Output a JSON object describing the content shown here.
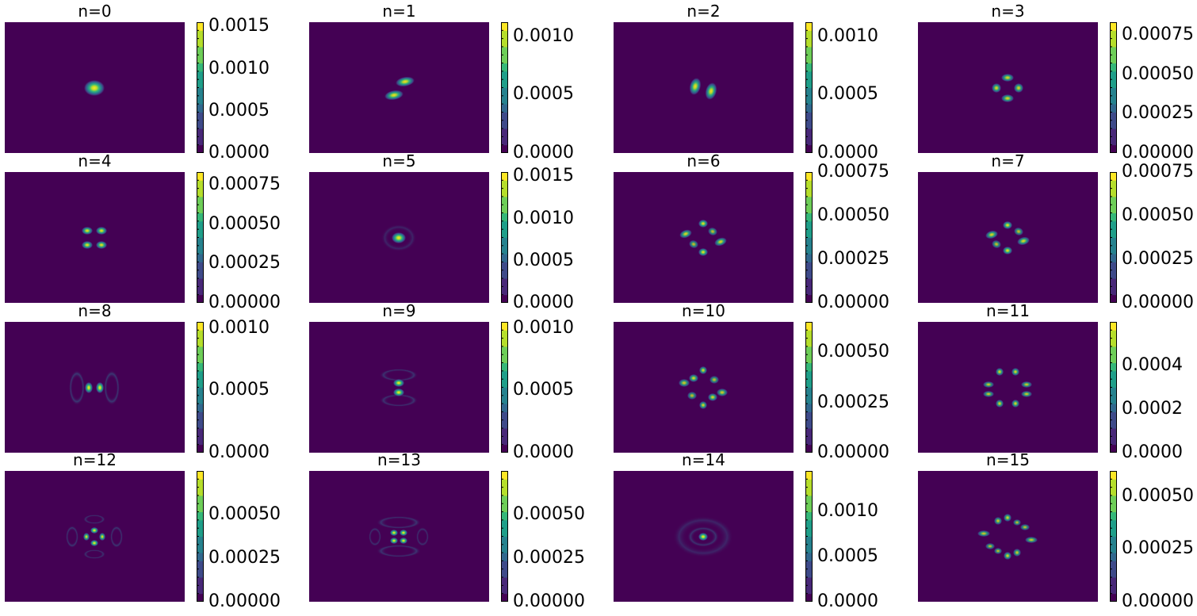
{
  "figure": {
    "colormap": "viridis",
    "panels": [
      {
        "title": "n=0",
        "ticks": [
          "0.0000",
          "0.0005",
          "0.0010",
          "0.0015"
        ],
        "tick_values": [
          0,
          0.0005,
          0.001,
          0.0015
        ],
        "vmax": 0.00155
      },
      {
        "title": "n=1",
        "ticks": [
          "0.0000",
          "0.0005",
          "0.0010"
        ],
        "tick_values": [
          0,
          0.0005,
          0.001
        ],
        "vmax": 0.00112
      },
      {
        "title": "n=2",
        "ticks": [
          "0.0000",
          "0.0005",
          "0.0010"
        ],
        "tick_values": [
          0,
          0.0005,
          0.001
        ],
        "vmax": 0.00112
      },
      {
        "title": "n=3",
        "ticks": [
          "0.00000",
          "0.00025",
          "0.00050",
          "0.00075"
        ],
        "tick_values": [
          0,
          0.00025,
          0.0005,
          0.00075
        ],
        "vmax": 0.00083
      },
      {
        "title": "n=4",
        "ticks": [
          "0.00000",
          "0.00025",
          "0.00050",
          "0.00075"
        ],
        "tick_values": [
          0,
          0.00025,
          0.0005,
          0.00075
        ],
        "vmax": 0.00083
      },
      {
        "title": "n=5",
        "ticks": [
          "0.0000",
          "0.0005",
          "0.0010",
          "0.0015"
        ],
        "tick_values": [
          0,
          0.0005,
          0.001,
          0.0015
        ],
        "vmax": 0.00155
      },
      {
        "title": "n=6",
        "ticks": [
          "0.00000",
          "0.00025",
          "0.00050",
          "0.00075"
        ],
        "tick_values": [
          0,
          0.00025,
          0.0005,
          0.00075
        ],
        "vmax": 0.00075
      },
      {
        "title": "n=7",
        "ticks": [
          "0.00000",
          "0.00025",
          "0.00050",
          "0.00075"
        ],
        "tick_values": [
          0,
          0.00025,
          0.0005,
          0.00075
        ],
        "vmax": 0.00075
      },
      {
        "title": "n=8",
        "ticks": [
          "0.0000",
          "0.0005",
          "0.0010"
        ],
        "tick_values": [
          0,
          0.0005,
          0.001
        ],
        "vmax": 0.00105
      },
      {
        "title": "n=9",
        "ticks": [
          "0.0000",
          "0.0005",
          "0.0010"
        ],
        "tick_values": [
          0,
          0.0005,
          0.001
        ],
        "vmax": 0.00105
      },
      {
        "title": "n=10",
        "ticks": [
          "0.00000",
          "0.00025",
          "0.00050"
        ],
        "tick_values": [
          0,
          0.00025,
          0.0005
        ],
        "vmax": 0.00065
      },
      {
        "title": "n=11",
        "ticks": [
          "0.0000",
          "0.0002",
          "0.0004"
        ],
        "tick_values": [
          0,
          0.0002,
          0.0004
        ],
        "vmax": 0.0006
      },
      {
        "title": "n=12",
        "ticks": [
          "0.00000",
          "0.00025",
          "0.00050"
        ],
        "tick_values": [
          0,
          0.00025,
          0.0005
        ],
        "vmax": 0.00075
      },
      {
        "title": "n=13",
        "ticks": [
          "0.00000",
          "0.00025",
          "0.00050"
        ],
        "tick_values": [
          0,
          0.00025,
          0.0005
        ],
        "vmax": 0.00075
      },
      {
        "title": "n=14",
        "ticks": [
          "0.0000",
          "0.0005",
          "0.0010"
        ],
        "tick_values": [
          0,
          0.0005,
          0.001
        ],
        "vmax": 0.00145
      },
      {
        "title": "n=15",
        "ticks": [
          "0.00000",
          "0.00025",
          "0.00050"
        ],
        "tick_values": [
          0,
          0.00025,
          0.0005
        ],
        "vmax": 0.00062
      }
    ]
  },
  "chart_data": [
    {
      "type": "heatmap",
      "title": "n=0",
      "colorbar_ticks": [
        0,
        0.0005,
        0.001,
        0.0015
      ],
      "vmax": 0.00155,
      "colormap": "viridis"
    },
    {
      "type": "heatmap",
      "title": "n=1",
      "colorbar_ticks": [
        0,
        0.0005,
        0.001
      ],
      "vmax": 0.00112,
      "colormap": "viridis"
    },
    {
      "type": "heatmap",
      "title": "n=2",
      "colorbar_ticks": [
        0,
        0.0005,
        0.001
      ],
      "vmax": 0.00112,
      "colormap": "viridis"
    },
    {
      "type": "heatmap",
      "title": "n=3",
      "colorbar_ticks": [
        0,
        0.00025,
        0.0005,
        0.00075
      ],
      "vmax": 0.00083,
      "colormap": "viridis"
    },
    {
      "type": "heatmap",
      "title": "n=4",
      "colorbar_ticks": [
        0,
        0.00025,
        0.0005,
        0.00075
      ],
      "vmax": 0.00083,
      "colormap": "viridis"
    },
    {
      "type": "heatmap",
      "title": "n=5",
      "colorbar_ticks": [
        0,
        0.0005,
        0.001,
        0.0015
      ],
      "vmax": 0.00155,
      "colormap": "viridis"
    },
    {
      "type": "heatmap",
      "title": "n=6",
      "colorbar_ticks": [
        0,
        0.00025,
        0.0005,
        0.00075
      ],
      "vmax": 0.00075,
      "colormap": "viridis"
    },
    {
      "type": "heatmap",
      "title": "n=7",
      "colorbar_ticks": [
        0,
        0.00025,
        0.0005,
        0.00075
      ],
      "vmax": 0.00075,
      "colormap": "viridis"
    },
    {
      "type": "heatmap",
      "title": "n=8",
      "colorbar_ticks": [
        0,
        0.0005,
        0.001
      ],
      "vmax": 0.00105,
      "colormap": "viridis"
    },
    {
      "type": "heatmap",
      "title": "n=9",
      "colorbar_ticks": [
        0,
        0.0005,
        0.001
      ],
      "vmax": 0.00105,
      "colormap": "viridis"
    },
    {
      "type": "heatmap",
      "title": "n=10",
      "colorbar_ticks": [
        0,
        0.00025,
        0.0005
      ],
      "vmax": 0.00065,
      "colormap": "viridis"
    },
    {
      "type": "heatmap",
      "title": "n=11",
      "colorbar_ticks": [
        0,
        0.0002,
        0.0004
      ],
      "vmax": 0.0006,
      "colormap": "viridis"
    },
    {
      "type": "heatmap",
      "title": "n=12",
      "colorbar_ticks": [
        0,
        0.00025,
        0.0005
      ],
      "vmax": 0.00075,
      "colormap": "viridis"
    },
    {
      "type": "heatmap",
      "title": "n=13",
      "colorbar_ticks": [
        0,
        0.00025,
        0.0005
      ],
      "vmax": 0.00075,
      "colormap": "viridis"
    },
    {
      "type": "heatmap",
      "title": "n=14",
      "colorbar_ticks": [
        0,
        0.0005,
        0.001
      ],
      "vmax": 0.00145,
      "colormap": "viridis"
    },
    {
      "type": "heatmap",
      "title": "n=15",
      "colorbar_ticks": [
        0,
        0.00025,
        0.0005
      ],
      "vmax": 0.00062,
      "colormap": "viridis"
    }
  ]
}
